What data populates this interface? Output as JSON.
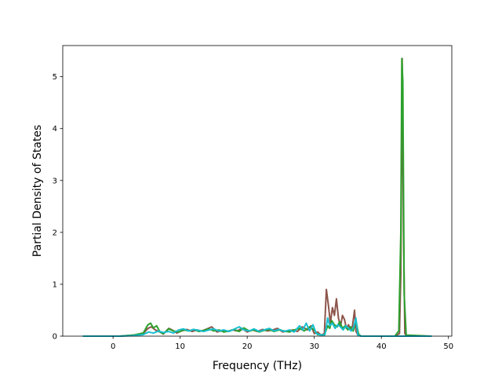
{
  "chart_data": {
    "type": "line",
    "title": "",
    "xlabel": "Frequency (THz)",
    "ylabel": "Partial Density of States",
    "xlim": [
      -7.5,
      50.5
    ],
    "ylim": [
      0,
      5.6
    ],
    "xticks": [
      0,
      10,
      20,
      30,
      40,
      50
    ],
    "yticks": [
      0,
      1,
      2,
      3,
      4,
      5
    ],
    "grid": false,
    "legend": "none",
    "series": [
      {
        "color": "#8c564b",
        "x": [
          -4.5,
          1,
          3,
          4.5,
          5.2,
          5.7,
          6.3,
          7,
          7.5,
          8.3,
          8.8,
          9.5,
          10.2,
          11,
          11.8,
          12.5,
          13.2,
          14,
          14.7,
          15.5,
          16.3,
          17,
          17.8,
          18.5,
          19.2,
          20,
          20.8,
          21.5,
          22.3,
          23,
          23.8,
          24.5,
          25.3,
          26,
          26.8,
          27.5,
          28.2,
          29,
          29.5,
          30,
          30.5,
          31,
          31.5,
          31.8,
          32.1,
          32.4,
          32.7,
          33,
          33.3,
          33.6,
          33.9,
          34.2,
          34.5,
          34.8,
          35.1,
          35.4,
          35.7,
          36,
          36.2,
          36.5,
          37,
          42,
          42.7,
          42.9,
          43.1,
          43.3,
          43.5,
          43.8,
          47.5
        ],
        "y": [
          0,
          0,
          0.02,
          0.05,
          0.15,
          0.18,
          0.12,
          0.08,
          0.04,
          0.15,
          0.12,
          0.06,
          0.1,
          0.13,
          0.09,
          0.12,
          0.1,
          0.14,
          0.18,
          0.08,
          0.11,
          0.09,
          0.12,
          0.1,
          0.15,
          0.08,
          0.12,
          0.09,
          0.13,
          0.1,
          0.12,
          0.15,
          0.08,
          0.1,
          0.12,
          0.09,
          0.18,
          0.12,
          0.2,
          0.05,
          0.08,
          0.02,
          0.05,
          0.9,
          0.6,
          0.25,
          0.55,
          0.4,
          0.72,
          0.35,
          0.18,
          0.4,
          0.32,
          0.15,
          0.22,
          0.12,
          0.2,
          0.5,
          0.1,
          0.02,
          0,
          0,
          0.05,
          1.2,
          5.35,
          2.0,
          0.05,
          0,
          0
        ]
      },
      {
        "color": "#2ca02c",
        "x": [
          -4.5,
          1,
          3,
          4.5,
          5.2,
          5.6,
          6,
          6.5,
          7,
          7.5,
          8.3,
          9,
          9.8,
          10.5,
          11.3,
          12,
          12.8,
          13.5,
          14.3,
          15,
          15.8,
          16.5,
          17.3,
          18,
          18.8,
          19.5,
          20.3,
          21,
          21.8,
          22.5,
          23.3,
          24,
          24.8,
          25.5,
          26.3,
          27,
          27.8,
          28.5,
          29.3,
          30,
          30.5,
          31.5,
          32,
          32.3,
          32.6,
          33,
          33.4,
          33.8,
          34.2,
          34.6,
          35,
          35.4,
          35.8,
          36.2,
          36.6,
          37,
          42,
          42.6,
          42.9,
          43.05,
          43.2,
          43.4,
          43.7,
          47.5
        ],
        "y": [
          0,
          0,
          0.02,
          0.06,
          0.22,
          0.25,
          0.16,
          0.2,
          0.08,
          0.05,
          0.14,
          0.1,
          0.08,
          0.12,
          0.1,
          0.13,
          0.09,
          0.11,
          0.14,
          0.1,
          0.12,
          0.08,
          0.1,
          0.13,
          0.09,
          0.16,
          0.1,
          0.12,
          0.08,
          0.11,
          0.13,
          0.09,
          0.12,
          0.1,
          0.08,
          0.12,
          0.15,
          0.1,
          0.18,
          0.12,
          0.03,
          0.02,
          0.2,
          0.15,
          0.3,
          0.22,
          0.18,
          0.28,
          0.15,
          0.2,
          0.12,
          0.18,
          0.1,
          0.3,
          0.04,
          0,
          0,
          0.1,
          2.0,
          5.35,
          4.9,
          0.8,
          0.02,
          0
        ]
      },
      {
        "color": "#17becf",
        "x": [
          -4.5,
          1,
          3,
          4.5,
          5.3,
          6,
          6.8,
          7.5,
          8.3,
          9,
          9.8,
          10.5,
          11.3,
          12,
          12.8,
          13.5,
          14.3,
          15,
          15.8,
          16.5,
          17.3,
          18,
          18.8,
          19.5,
          20.3,
          21,
          21.8,
          22.5,
          23.3,
          24,
          24.8,
          25.5,
          26.3,
          27,
          27.8,
          28.3,
          28.8,
          29.3,
          29.8,
          30.3,
          31,
          31.6,
          32,
          32.3,
          32.7,
          33.1,
          33.5,
          33.9,
          34.3,
          34.7,
          35.1,
          35.5,
          35.9,
          36.2,
          36.5,
          37,
          47.5
        ],
        "y": [
          0,
          0,
          0.01,
          0.03,
          0.08,
          0.06,
          0.1,
          0.07,
          0.09,
          0.06,
          0.12,
          0.14,
          0.1,
          0.13,
          0.11,
          0.09,
          0.12,
          0.14,
          0.1,
          0.12,
          0.09,
          0.13,
          0.18,
          0.12,
          0.1,
          0.14,
          0.09,
          0.12,
          0.15,
          0.1,
          0.13,
          0.09,
          0.12,
          0.08,
          0.2,
          0.12,
          0.25,
          0.1,
          0.22,
          0.05,
          0.02,
          0.03,
          0.35,
          0.2,
          0.25,
          0.15,
          0.22,
          0.18,
          0.12,
          0.2,
          0.15,
          0.1,
          0.18,
          0.35,
          0.02,
          0,
          0
        ]
      }
    ]
  }
}
